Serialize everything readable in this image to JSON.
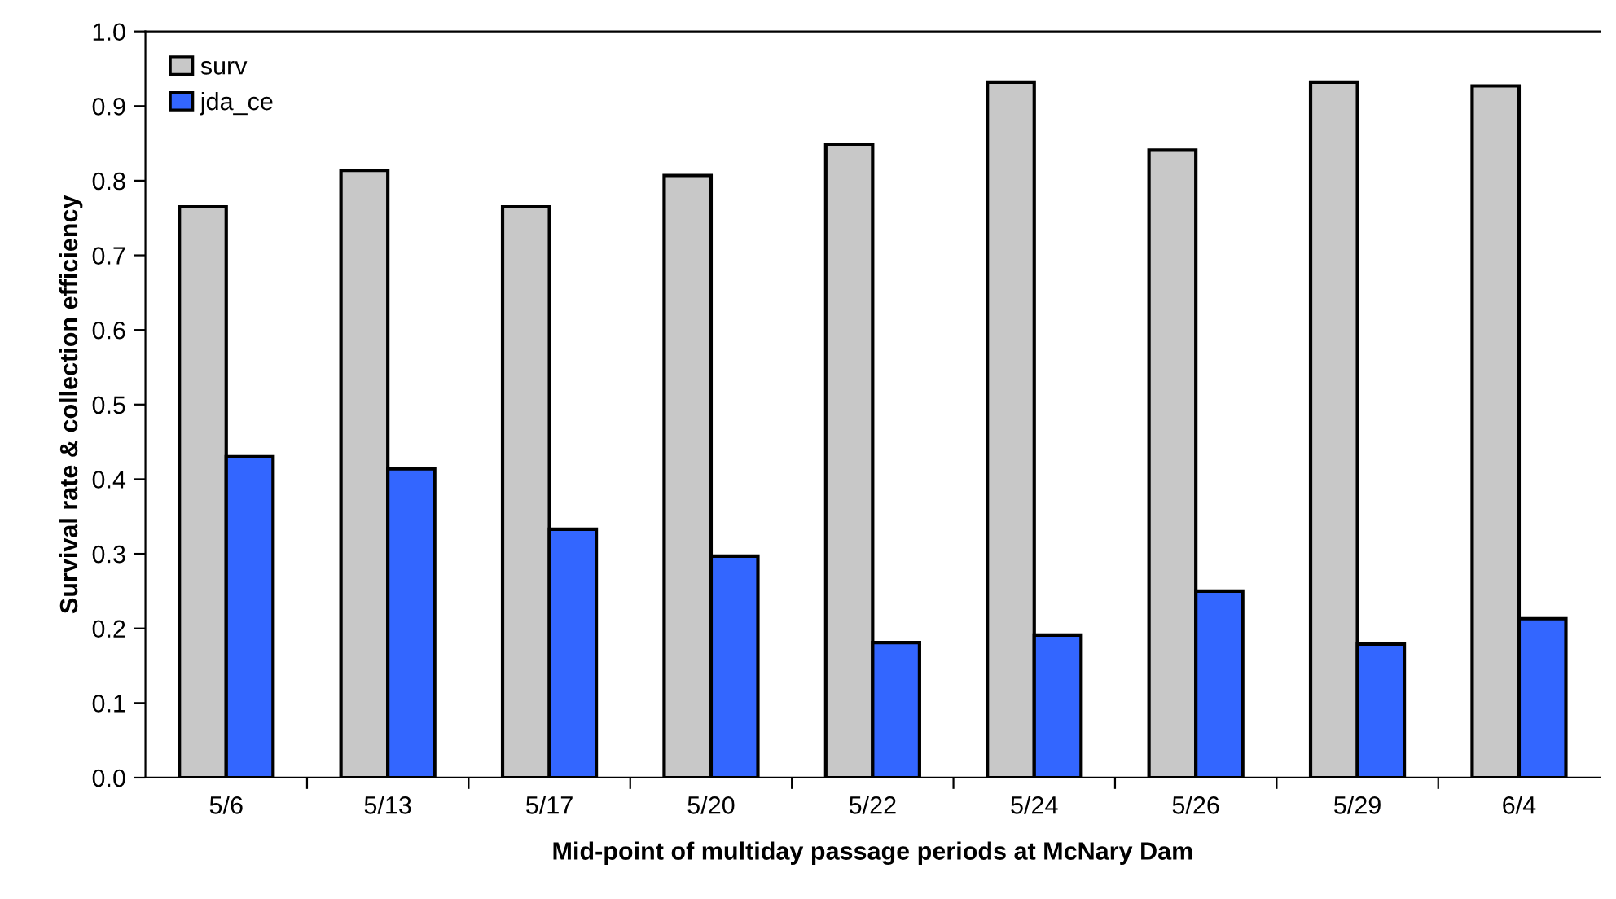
{
  "chart_data": {
    "type": "bar",
    "xlabel": "Mid-point of multiday passage periods at McNary Dam",
    "ylabel": "Survival rate & collection efficiency",
    "categories": [
      "5/6",
      "5/13",
      "5/17",
      "5/20",
      "5/22",
      "5/24",
      "5/26",
      "5/29",
      "6/4"
    ],
    "series": [
      {
        "name": "surv",
        "color": "#c8c8c8",
        "values": [
          0.765,
          0.814,
          0.765,
          0.807,
          0.849,
          0.932,
          0.841,
          0.932,
          0.927
        ]
      },
      {
        "name": "jda_ce",
        "color": "#3366ff",
        "values": [
          0.43,
          0.414,
          0.333,
          0.297,
          0.181,
          0.191,
          0.25,
          0.179,
          0.213
        ]
      }
    ],
    "ylim": [
      0,
      1.0
    ],
    "yticks": [
      {
        "value": 0,
        "label": "0.0"
      },
      0.1,
      0.2,
      0.3,
      0.4,
      0.5,
      0.6,
      0.7,
      0.8,
      0.9,
      {
        "value": 1.0,
        "label": "1.0"
      }
    ],
    "grid": false,
    "legend": "top left"
  }
}
